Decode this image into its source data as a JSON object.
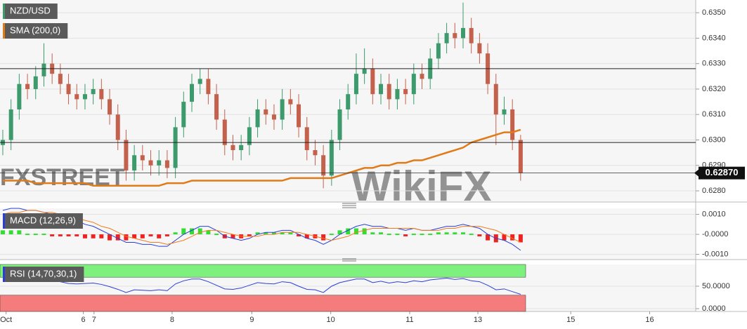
{
  "chart_data": [
    {
      "type": "candlestick",
      "title": "NZD/USD",
      "x": [
        0,
        1,
        2,
        3,
        4,
        5,
        6,
        7,
        8,
        9,
        10,
        11,
        12,
        13,
        14,
        15,
        16,
        17,
        18,
        19,
        20,
        21,
        22,
        23,
        24,
        25,
        26,
        27,
        28,
        29,
        30,
        31,
        32,
        33,
        34,
        35,
        36,
        37,
        38,
        39,
        40,
        41,
        42,
        43,
        44,
        45,
        46,
        47,
        48,
        49,
        50,
        51,
        52,
        53,
        54,
        55,
        56,
        57,
        58,
        59,
        60,
        61,
        62,
        63
      ],
      "open": [
        0.6298,
        0.63,
        0.6312,
        0.6322,
        0.632,
        0.6325,
        0.633,
        0.6326,
        0.6322,
        0.6318,
        0.6316,
        0.6318,
        0.632,
        0.6316,
        0.631,
        0.63,
        0.6288,
        0.6294,
        0.6292,
        0.629,
        0.6292,
        0.6289,
        0.6305,
        0.6315,
        0.6322,
        0.6324,
        0.6318,
        0.6308,
        0.6298,
        0.6296,
        0.6298,
        0.6305,
        0.6312,
        0.631,
        0.6308,
        0.6316,
        0.6314,
        0.6305,
        0.6296,
        0.6294,
        0.6286,
        0.63,
        0.6312,
        0.6318,
        0.6326,
        0.6328,
        0.6318,
        0.6322,
        0.6316,
        0.632,
        0.6318,
        0.6326,
        0.6324,
        0.6332,
        0.6338,
        0.6342,
        0.634,
        0.6344,
        0.6338,
        0.6334,
        0.6322,
        0.631,
        0.6312,
        0.63
      ],
      "high": [
        0.6304,
        0.6316,
        0.6326,
        0.6326,
        0.6329,
        0.6338,
        0.6334,
        0.633,
        0.6326,
        0.6322,
        0.6322,
        0.6324,
        0.6324,
        0.632,
        0.6314,
        0.6304,
        0.6298,
        0.6298,
        0.6296,
        0.6296,
        0.6296,
        0.6309,
        0.6319,
        0.6326,
        0.6328,
        0.6328,
        0.6322,
        0.6312,
        0.6302,
        0.6302,
        0.6309,
        0.6316,
        0.6316,
        0.6314,
        0.632,
        0.632,
        0.6318,
        0.6309,
        0.63,
        0.6298,
        0.6304,
        0.6316,
        0.6322,
        0.6334,
        0.6336,
        0.6332,
        0.6326,
        0.6326,
        0.6324,
        0.6324,
        0.633,
        0.633,
        0.6336,
        0.6342,
        0.6346,
        0.6346,
        0.6354,
        0.6348,
        0.6342,
        0.6338,
        0.6326,
        0.6317,
        0.6316,
        0.6302
      ],
      "low": [
        0.6294,
        0.6296,
        0.6308,
        0.6316,
        0.6316,
        0.6321,
        0.6322,
        0.6318,
        0.6314,
        0.6312,
        0.6312,
        0.6314,
        0.6312,
        0.6306,
        0.6296,
        0.6284,
        0.6284,
        0.6288,
        0.6286,
        0.6286,
        0.6285,
        0.6285,
        0.6301,
        0.6311,
        0.6318,
        0.6314,
        0.6304,
        0.6294,
        0.6292,
        0.6292,
        0.6294,
        0.6301,
        0.6306,
        0.6304,
        0.6304,
        0.631,
        0.6301,
        0.6292,
        0.629,
        0.6281,
        0.6282,
        0.6296,
        0.6308,
        0.6314,
        0.6322,
        0.6314,
        0.6314,
        0.6312,
        0.6312,
        0.6314,
        0.6314,
        0.632,
        0.632,
        0.6328,
        0.6334,
        0.6336,
        0.6336,
        0.6334,
        0.633,
        0.6318,
        0.6298,
        0.6306,
        0.6296,
        0.6284
      ],
      "close": [
        0.63,
        0.6312,
        0.6322,
        0.632,
        0.6325,
        0.633,
        0.6326,
        0.6322,
        0.6318,
        0.6316,
        0.6318,
        0.632,
        0.6316,
        0.631,
        0.63,
        0.6288,
        0.6294,
        0.6292,
        0.629,
        0.6292,
        0.6289,
        0.6305,
        0.6315,
        0.6322,
        0.6324,
        0.6318,
        0.6308,
        0.6298,
        0.6296,
        0.6298,
        0.6305,
        0.6312,
        0.631,
        0.6308,
        0.6316,
        0.6314,
        0.6305,
        0.6296,
        0.6294,
        0.6286,
        0.63,
        0.6312,
        0.6318,
        0.6326,
        0.6328,
        0.6318,
        0.6322,
        0.6316,
        0.632,
        0.6318,
        0.6326,
        0.6324,
        0.6332,
        0.6338,
        0.6342,
        0.634,
        0.6344,
        0.6338,
        0.6334,
        0.6322,
        0.631,
        0.6312,
        0.63,
        0.6287
      ],
      "up_color": "#3c9a6c",
      "down_color": "#c4614c",
      "series": [
        {
          "name": "SMA (200,0)",
          "color": "#e07b1a",
          "values": [
            0.6284,
            0.6284,
            0.6284,
            0.6284,
            0.6283,
            0.6283,
            0.6283,
            0.6283,
            0.6283,
            0.6283,
            0.6283,
            0.6282,
            0.6282,
            0.6282,
            0.6282,
            0.6282,
            0.6282,
            0.6282,
            0.6282,
            0.6282,
            0.6283,
            0.6283,
            0.6283,
            0.6284,
            0.6284,
            0.6284,
            0.6284,
            0.6284,
            0.6284,
            0.6284,
            0.6284,
            0.6284,
            0.6284,
            0.6284,
            0.6284,
            0.6285,
            0.6285,
            0.6285,
            0.6285,
            0.6285,
            0.6285,
            0.6286,
            0.6287,
            0.6288,
            0.6289,
            0.6289,
            0.629,
            0.629,
            0.6291,
            0.6291,
            0.6292,
            0.6292,
            0.6293,
            0.6294,
            0.6295,
            0.6296,
            0.6297,
            0.6299,
            0.63,
            0.6301,
            0.6302,
            0.6303,
            0.6303,
            0.6304
          ]
        }
      ],
      "levels": [
        0.6328,
        0.6299
      ],
      "last_price": {
        "value": 0.6287,
        "label": "0.62870"
      },
      "ylim": [
        0.62756,
        0.6355
      ],
      "yticks": [
        {
          "value": 0.628,
          "label": "0.6280"
        },
        {
          "value": 0.629,
          "label": "0.6290"
        },
        {
          "value": 0.63,
          "label": "0.6300"
        },
        {
          "value": 0.631,
          "label": "0.6310"
        },
        {
          "value": 0.632,
          "label": "0.6320"
        },
        {
          "value": 0.633,
          "label": "0.6330"
        },
        {
          "value": 0.634,
          "label": "0.6340"
        },
        {
          "value": 0.635,
          "label": "0.6350"
        }
      ],
      "xlim": [
        -0.34,
        84.3
      ],
      "xticks": [
        {
          "value": 0.4,
          "label": "Oct"
        },
        {
          "value": 9.8,
          "label": "6"
        },
        {
          "value": 11.1,
          "label": "7"
        },
        {
          "value": 20.6,
          "label": "8"
        },
        {
          "value": 30.3,
          "label": "9"
        },
        {
          "value": 39.9,
          "label": "10"
        },
        {
          "value": 49.5,
          "label": "11"
        },
        {
          "value": 57.8,
          "label": "13"
        },
        {
          "value": 69.1,
          "label": "15"
        },
        {
          "value": 78.7,
          "label": "16"
        }
      ],
      "grid": true
    },
    {
      "type": "macd",
      "title": "MACD (12,26,9)",
      "lines": [
        {
          "color": "#2a3fd8",
          "values": [
            0.0012,
            0.0013,
            0.0013,
            0.0012,
            0.0012,
            0.0011,
            0.001,
            0.0009,
            0.0008,
            0.0007,
            0.0005,
            0.0004,
            0.0002,
            0.0,
            -0.0002,
            -0.0004,
            -0.0004,
            -0.0005,
            -0.0005,
            -0.0006,
            -0.0006,
            -0.0003,
            0.0,
            0.0002,
            0.0004,
            0.0004,
            0.0002,
            -0.0001,
            -0.0002,
            -0.0003,
            -0.0002,
            0.0,
            0.0001,
            0.0001,
            0.0002,
            0.0002,
            0.0,
            -0.0002,
            -0.0003,
            -0.0005,
            -0.0003,
            0.0,
            0.0002,
            0.0004,
            0.0005,
            0.0004,
            0.0004,
            0.0003,
            0.0003,
            0.0002,
            0.0003,
            0.0002,
            0.0002,
            0.0003,
            0.0004,
            0.0004,
            0.0005,
            0.0004,
            0.0003,
            0.0,
            -0.0002,
            -0.0003,
            -0.0005,
            -0.0008
          ]
        },
        {
          "color": "#f07c1c",
          "values": [
            0.001,
            0.0011,
            0.0011,
            0.0012,
            0.0012,
            0.0011,
            0.0011,
            0.001,
            0.0009,
            0.0008,
            0.0007,
            0.0006,
            0.0004,
            0.0003,
            0.0001,
            -0.0001,
            -0.0002,
            -0.0003,
            -0.0004,
            -0.0004,
            -0.0005,
            -0.0004,
            -0.0003,
            -0.0001,
            0.0001,
            0.0002,
            0.0002,
            0.0001,
            0.0,
            -0.0001,
            -0.0001,
            -0.0001,
            0.0,
            0.0,
            0.0001,
            0.0001,
            0.0001,
            0.0,
            -0.0001,
            -0.0002,
            -0.0003,
            -0.0002,
            -0.0001,
            0.0001,
            0.0002,
            0.0003,
            0.0003,
            0.0003,
            0.0003,
            0.0003,
            0.0003,
            0.0002,
            0.0002,
            0.0002,
            0.0003,
            0.0003,
            0.0004,
            0.0004,
            0.0004,
            0.0003,
            0.0002,
            0.0,
            -0.0002,
            -0.0004
          ]
        }
      ],
      "histogram": {
        "colors": [
          "#33dd33",
          "#ee2222"
        ],
        "values": [
          0.0002,
          0.0002,
          0.0002,
          0,
          0,
          0,
          -0.0001,
          -0.0001,
          -0.0001,
          -0.0001,
          -0.0002,
          -0.0002,
          -0.0002,
          -0.0003,
          -0.0003,
          -0.0003,
          -0.0002,
          -0.0002,
          -0.0001,
          -0.0002,
          -0.0001,
          0.0001,
          0.0003,
          0.0003,
          0.0003,
          0.0002,
          0,
          -0.0002,
          -0.0002,
          -0.0002,
          -0.0001,
          0.0001,
          0.0001,
          0.0001,
          0.0001,
          0.0001,
          -0.0001,
          -0.0002,
          -0.0002,
          -0.0003,
          0,
          0.0002,
          0.0003,
          0.0003,
          0.0003,
          0.0001,
          0.0001,
          0,
          0,
          -0.0001,
          0,
          0,
          0,
          0.0001,
          0.0001,
          0.0001,
          0.0001,
          0,
          -0.0001,
          -0.0003,
          -0.0004,
          -0.0003,
          -0.0003,
          -0.0004
        ]
      },
      "ylim": [
        -0.00126,
        0.0013
      ],
      "yticks": [
        {
          "value": 0.001,
          "label": "0.0010"
        },
        {
          "value": 0,
          "label": "-0.0000"
        },
        {
          "value": -0.001,
          "label": "-0.0010"
        }
      ],
      "grid": true
    },
    {
      "type": "rsi",
      "title": "RSI (14,70,30,1)",
      "color": "#2a3fd8",
      "values": [
        62,
        64,
        66,
        64,
        66,
        68,
        64,
        60,
        56,
        55,
        56,
        57,
        54,
        49,
        43,
        36,
        42,
        41,
        40,
        42,
        40,
        55,
        62,
        66,
        66,
        60,
        52,
        44,
        43,
        46,
        52,
        58,
        56,
        55,
        60,
        58,
        50,
        43,
        42,
        36,
        50,
        58,
        62,
        66,
        66,
        58,
        61,
        57,
        60,
        58,
        62,
        60,
        64,
        66,
        68,
        65,
        67,
        62,
        60,
        52,
        42,
        44,
        38,
        32
      ],
      "overbought": 70,
      "oversold": 30,
      "overbought_color": "#7ef07e",
      "oversold_color": "#f57c7c",
      "ylim": [
        -6.25,
        98.4
      ],
      "yticks": [
        {
          "value": 50,
          "label": "50.0000"
        },
        {
          "value": 0,
          "label": "0.0000"
        }
      ],
      "grid": true
    }
  ],
  "watermarks": [
    "FXSTREET",
    "WikiFX"
  ]
}
